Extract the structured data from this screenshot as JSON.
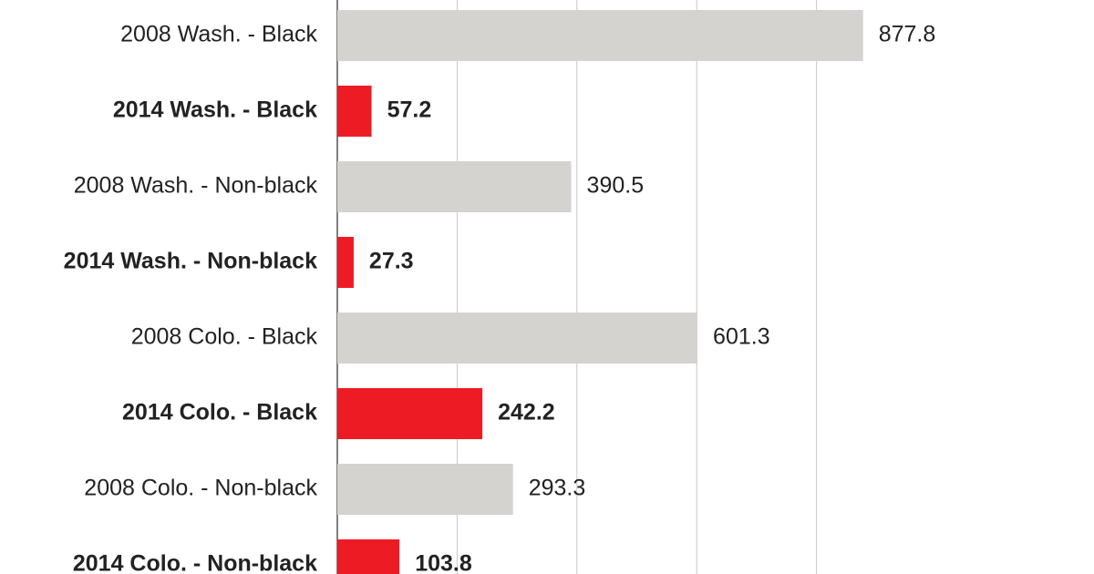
{
  "chart_data": {
    "type": "hbar",
    "categories": [
      "2008 Wash. - Black",
      "2014 Wash. - Black",
      "2008 Wash. - Non-black",
      "2014 Wash. - Non-black",
      "2008 Colo. - Black",
      "2014 Colo. - Black",
      "2008 Colo. - Non-black",
      "2014 Colo. - Non-black"
    ],
    "values": [
      877.8,
      57.2,
      390.5,
      27.3,
      601.3,
      242.2,
      293.3,
      103.8
    ],
    "colors": [
      "#d4d3cf",
      "#ed1c24",
      "#d4d3cf",
      "#ed1c24",
      "#d4d3cf",
      "#ed1c24",
      "#d4d3cf",
      "#ed1c24"
    ],
    "label_weights": [
      "normal",
      "bold",
      "normal",
      "bold",
      "normal",
      "bold",
      "normal",
      "bold"
    ],
    "xlim": [
      0,
      1000
    ],
    "xticks": [
      0,
      200,
      400,
      600,
      800
    ],
    "grid": true
  }
}
